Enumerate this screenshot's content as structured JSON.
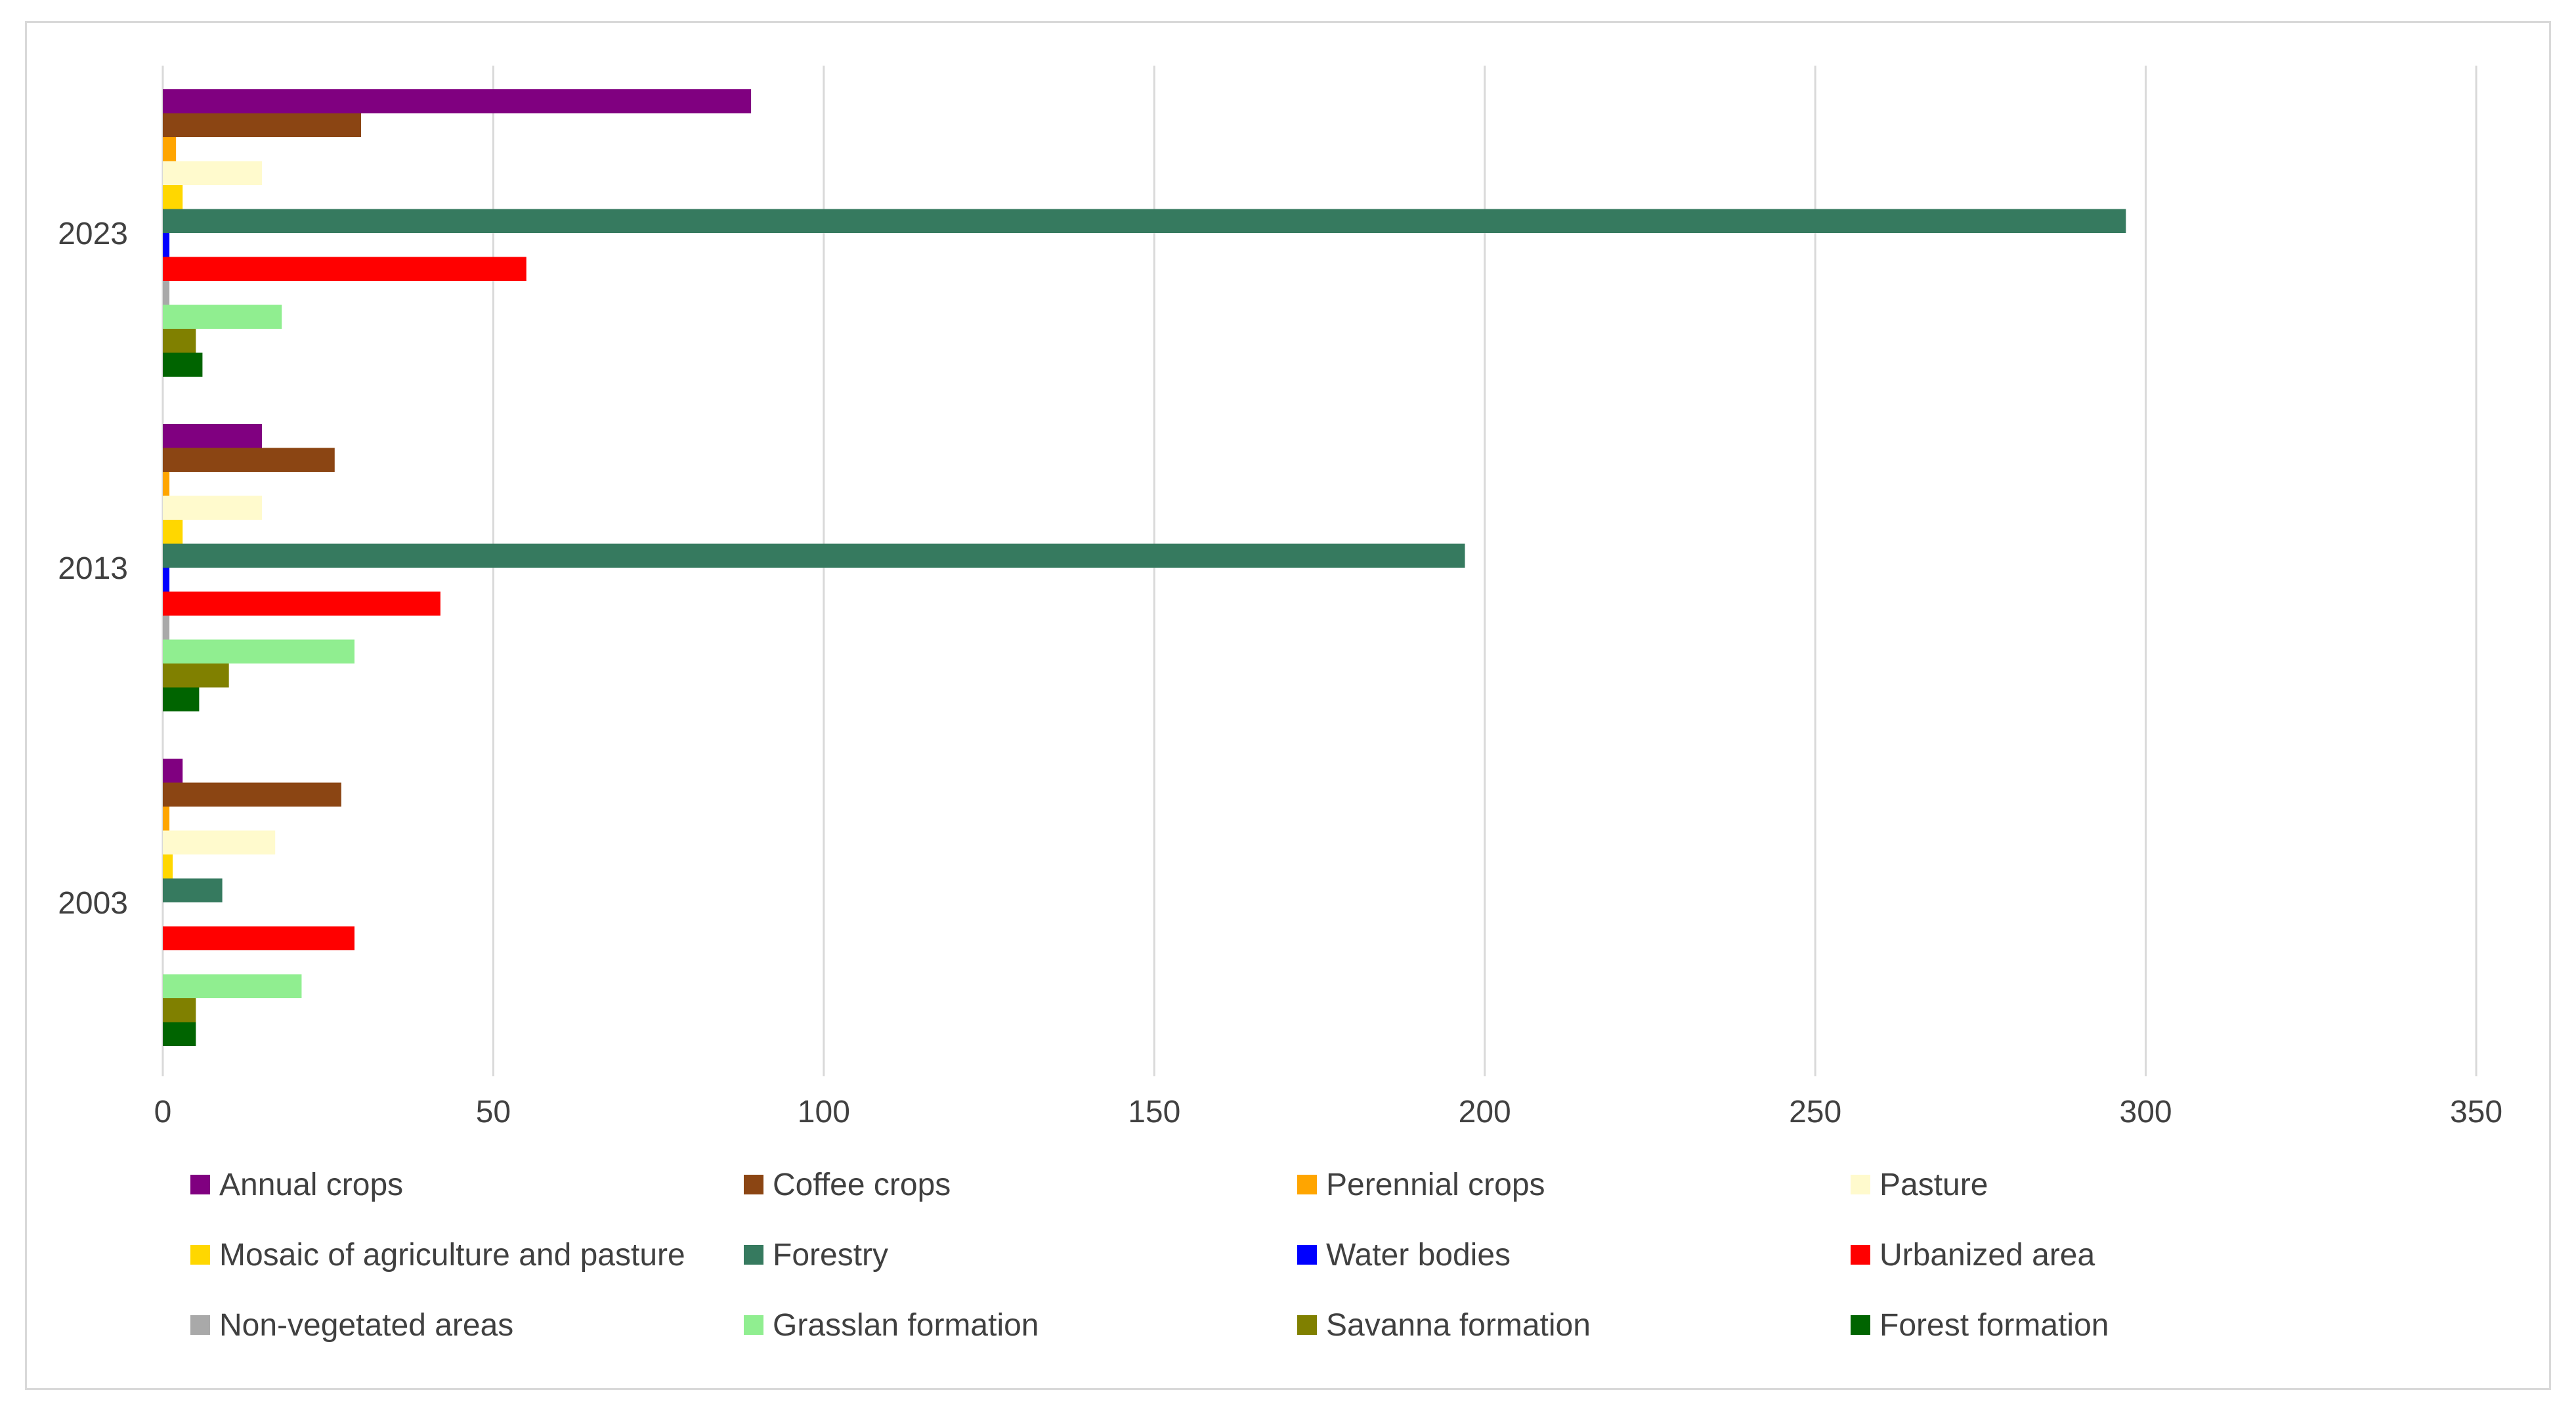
{
  "chart_data": {
    "type": "bar",
    "orientation": "horizontal",
    "title": "",
    "xlabel": "",
    "ylabel": "",
    "xlim": [
      0,
      350
    ],
    "x_ticks": [
      "0",
      "50",
      "100",
      "150",
      "200",
      "250",
      "300",
      "350"
    ],
    "categories": [
      "2023",
      "2013",
      "2003"
    ],
    "grid": "vertical",
    "legend_position": "bottom",
    "series": [
      {
        "name": "Annual crops",
        "color": "#800080",
        "values": [
          89,
          15,
          3
        ]
      },
      {
        "name": "Coffee crops",
        "color": "#8B4513",
        "values": [
          30,
          26,
          27
        ]
      },
      {
        "name": "Perennial crops",
        "color": "#FFA500",
        "values": [
          2,
          1,
          1
        ]
      },
      {
        "name": "Pasture",
        "color": "#FFFACD",
        "values": [
          15,
          15,
          17
        ]
      },
      {
        "name": "Mosaic of agriculture and pasture",
        "color": "#FFD700",
        "values": [
          3,
          3,
          1.5
        ]
      },
      {
        "name": "Forestry",
        "color": "#367A5F",
        "values": [
          297,
          197,
          9
        ]
      },
      {
        "name": "Water bodies",
        "color": "#0000FF",
        "values": [
          1,
          1,
          0
        ]
      },
      {
        "name": "Urbanized area",
        "color": "#FF0000",
        "values": [
          55,
          42,
          29
        ]
      },
      {
        "name": "Non-vegetated areas",
        "color": "#A9A9A9",
        "values": [
          1,
          1,
          0
        ]
      },
      {
        "name": "Grasslan formation",
        "color": "#90EE90",
        "values": [
          18,
          29,
          21
        ]
      },
      {
        "name": "Savanna formation",
        "color": "#808000",
        "values": [
          5,
          10,
          5
        ]
      },
      {
        "name": "Forest formation",
        "color": "#006400",
        "values": [
          6,
          5.5,
          5
        ]
      }
    ]
  }
}
